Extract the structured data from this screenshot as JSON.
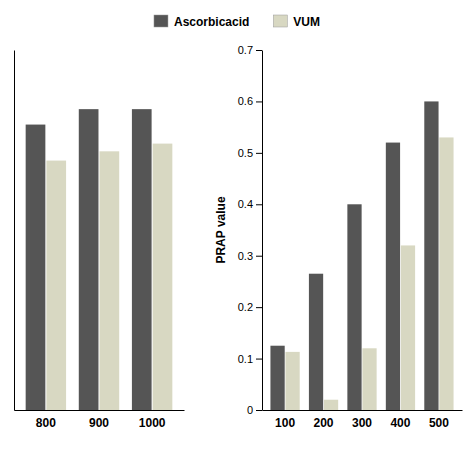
{
  "chart_data": [
    {
      "type": "bar",
      "categories": [
        "800",
        "900",
        "1000"
      ],
      "series": [
        {
          "name": "Ascorbicacid",
          "color": "#555555",
          "values": [
            0.555,
            0.585,
            0.585
          ]
        },
        {
          "name": "VUM",
          "color": "#d8d8c2",
          "values": [
            0.485,
            0.503,
            0.518
          ]
        }
      ],
      "ylim": [
        0,
        0.7
      ],
      "tick_labels": "x"
    },
    {
      "type": "bar",
      "categories": [
        "100",
        "200",
        "300",
        "400",
        "500"
      ],
      "series": [
        {
          "name": "Ascorbicacid",
          "color": "#555555",
          "values": [
            0.125,
            0.265,
            0.4,
            0.52,
            0.6
          ]
        },
        {
          "name": "VUM",
          "color": "#d8d8c2",
          "values": [
            0.113,
            0.02,
            0.12,
            0.32,
            0.53
          ]
        }
      ],
      "y_label": "PRAP value",
      "ylim": [
        0,
        0.7
      ],
      "yticks": [
        0,
        0.1,
        0.2,
        0.3,
        0.4,
        0.5,
        0.6,
        0.7
      ]
    }
  ]
}
